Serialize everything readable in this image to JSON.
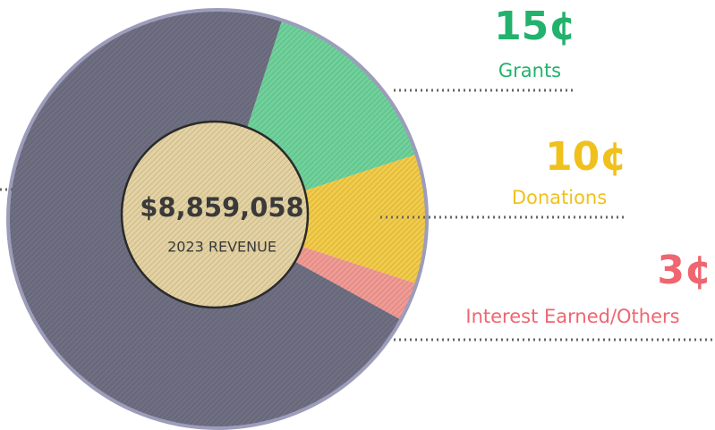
{
  "chart_data": {
    "type": "pie",
    "title": "$8,859,058",
    "subtitle": "2023 REVENUE",
    "categories": [
      "Grants",
      "Donations",
      "Interest Earned/Others",
      null
    ],
    "values": [
      15,
      10,
      3,
      72
    ],
    "value_labels": [
      "15¢",
      "10¢",
      "3¢",
      null
    ],
    "colors": [
      "#6fd29b",
      "#f2cb48",
      "#f29a94",
      "#6f6f83"
    ],
    "label_colors": [
      "#22b26d",
      "#f0c11c",
      "#ef6570",
      null
    ]
  }
}
